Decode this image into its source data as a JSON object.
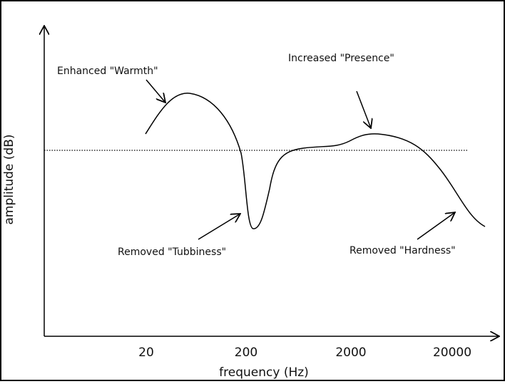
{
  "axes": {
    "y_label": "amplitude (dB)",
    "x_label": "frequency (Hz)",
    "x_ticks": [
      "20",
      "200",
      "2000",
      "20000"
    ]
  },
  "annotations": [
    "Enhanced \"Warmth\"",
    "Increased \"Presence\"",
    "Removed \"Tubbiness\"",
    "Removed \"Hardness\""
  ]
}
